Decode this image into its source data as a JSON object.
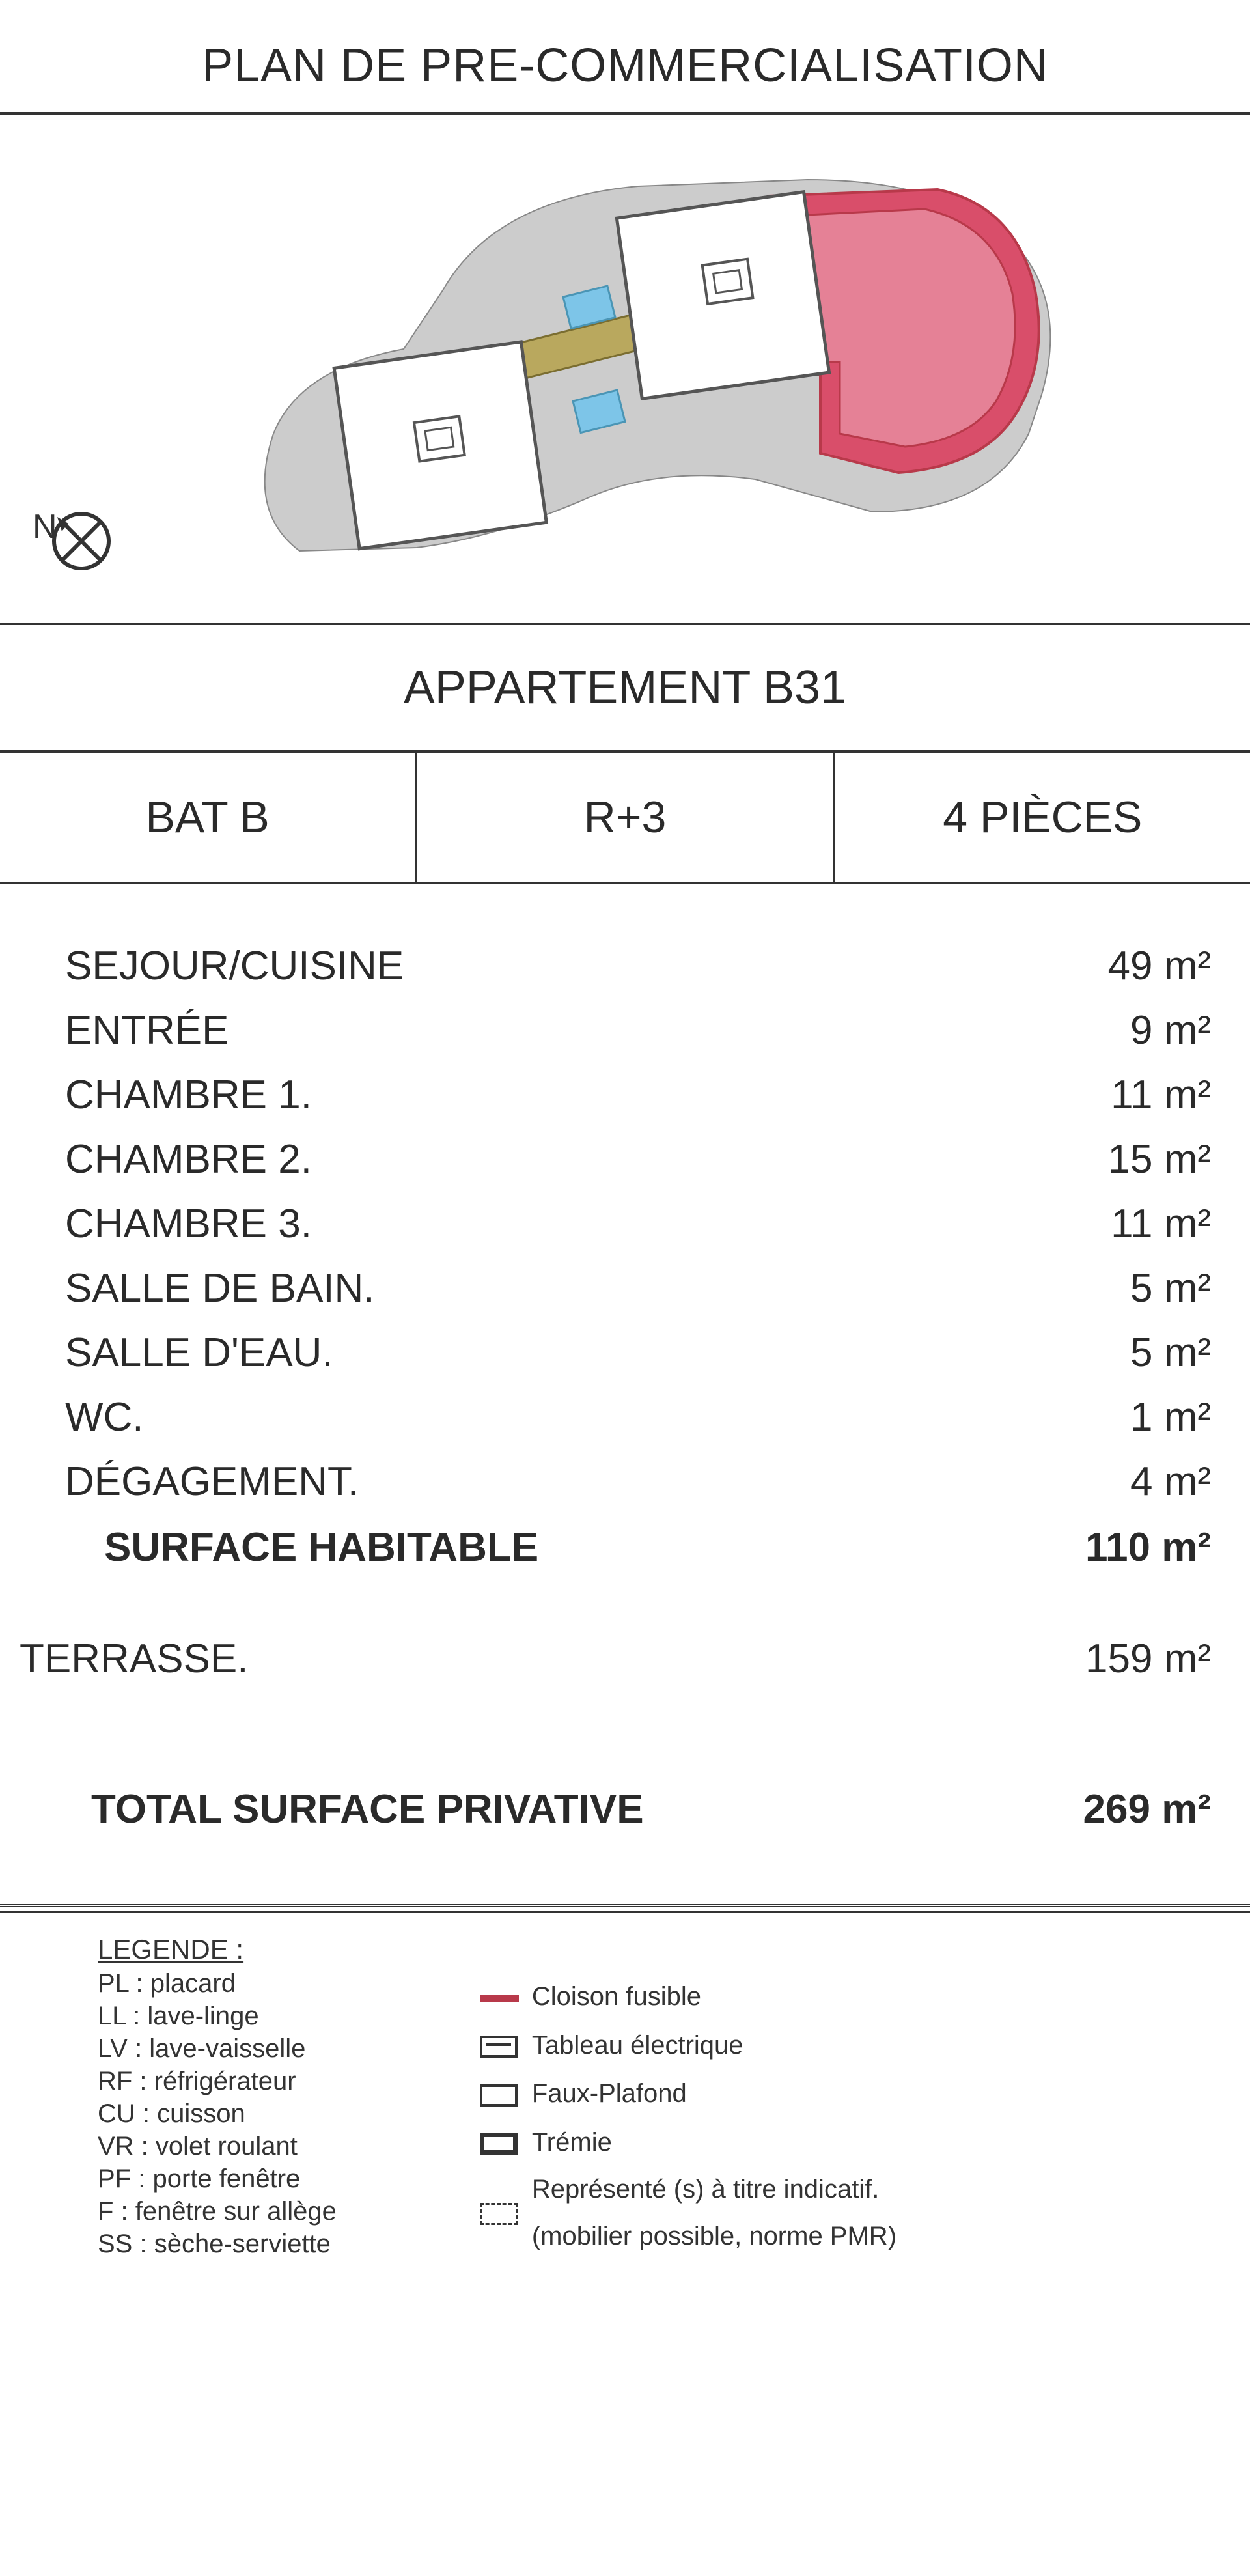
{
  "title": "PLAN DE PRE-COMMERCIALISATION",
  "apartment_title": "APPARTEMENT B31",
  "info": {
    "building": "BAT B",
    "floor": "R+3",
    "rooms_count": "4 PIÈCES"
  },
  "rooms": [
    {
      "label": "SEJOUR/CUISINE",
      "value": "49  m²"
    },
    {
      "label": "ENTRÉE",
      "value": "9 m²"
    },
    {
      "label": "CHAMBRE 1.",
      "value": "11 m²"
    },
    {
      "label": "CHAMBRE 2.",
      "value": "15 m²"
    },
    {
      "label": "CHAMBRE 3.",
      "value": "11 m²"
    },
    {
      "label": "SALLE DE BAIN.",
      "value": "5 m²"
    },
    {
      "label": "SALLE D'EAU.",
      "value": "5 m²"
    },
    {
      "label": "WC.",
      "value": "1 m²"
    },
    {
      "label": "DÉGAGEMENT.",
      "value": "4 m²"
    }
  ],
  "habitable_label": "SURFACE HABITABLE",
  "habitable_value": "110 m²",
  "terrasse_label": "TERRASSE.",
  "terrasse_value": "159  m²",
  "total_label": "TOTAL SURFACE PRIVATIVE",
  "total_value": "269 m²",
  "legend": {
    "title": "LEGENDE :",
    "abbrevs": [
      "PL : placard",
      "LL : lave-linge",
      "LV : lave-vaisselle",
      "RF : réfrigérateur",
      "CU : cuisson",
      "VR : volet roulant",
      "PF : porte fenêtre",
      "F  : fenêtre sur allège",
      "SS : sèche-serviette"
    ],
    "symbols": [
      {
        "type": "line",
        "label": "Cloison fusible"
      },
      {
        "type": "elec",
        "label": "Tableau électrique"
      },
      {
        "type": "plain",
        "label": "Faux-Plafond"
      },
      {
        "type": "thick",
        "label": "Trémie"
      },
      {
        "type": "dash",
        "label": "Représenté (s) à titre indicatif.\n(mobilier possible, norme PMR)"
      }
    ]
  },
  "site_plan": {
    "highlight_color": "#d94e6a",
    "highlight_stroke": "#b8394a",
    "ground_color": "#cccccc",
    "building_fill": "#ffffff",
    "building_stroke": "#555555",
    "pool_color": "#7dc5e8",
    "path_color": "#b9a85e",
    "north_label": "N"
  }
}
